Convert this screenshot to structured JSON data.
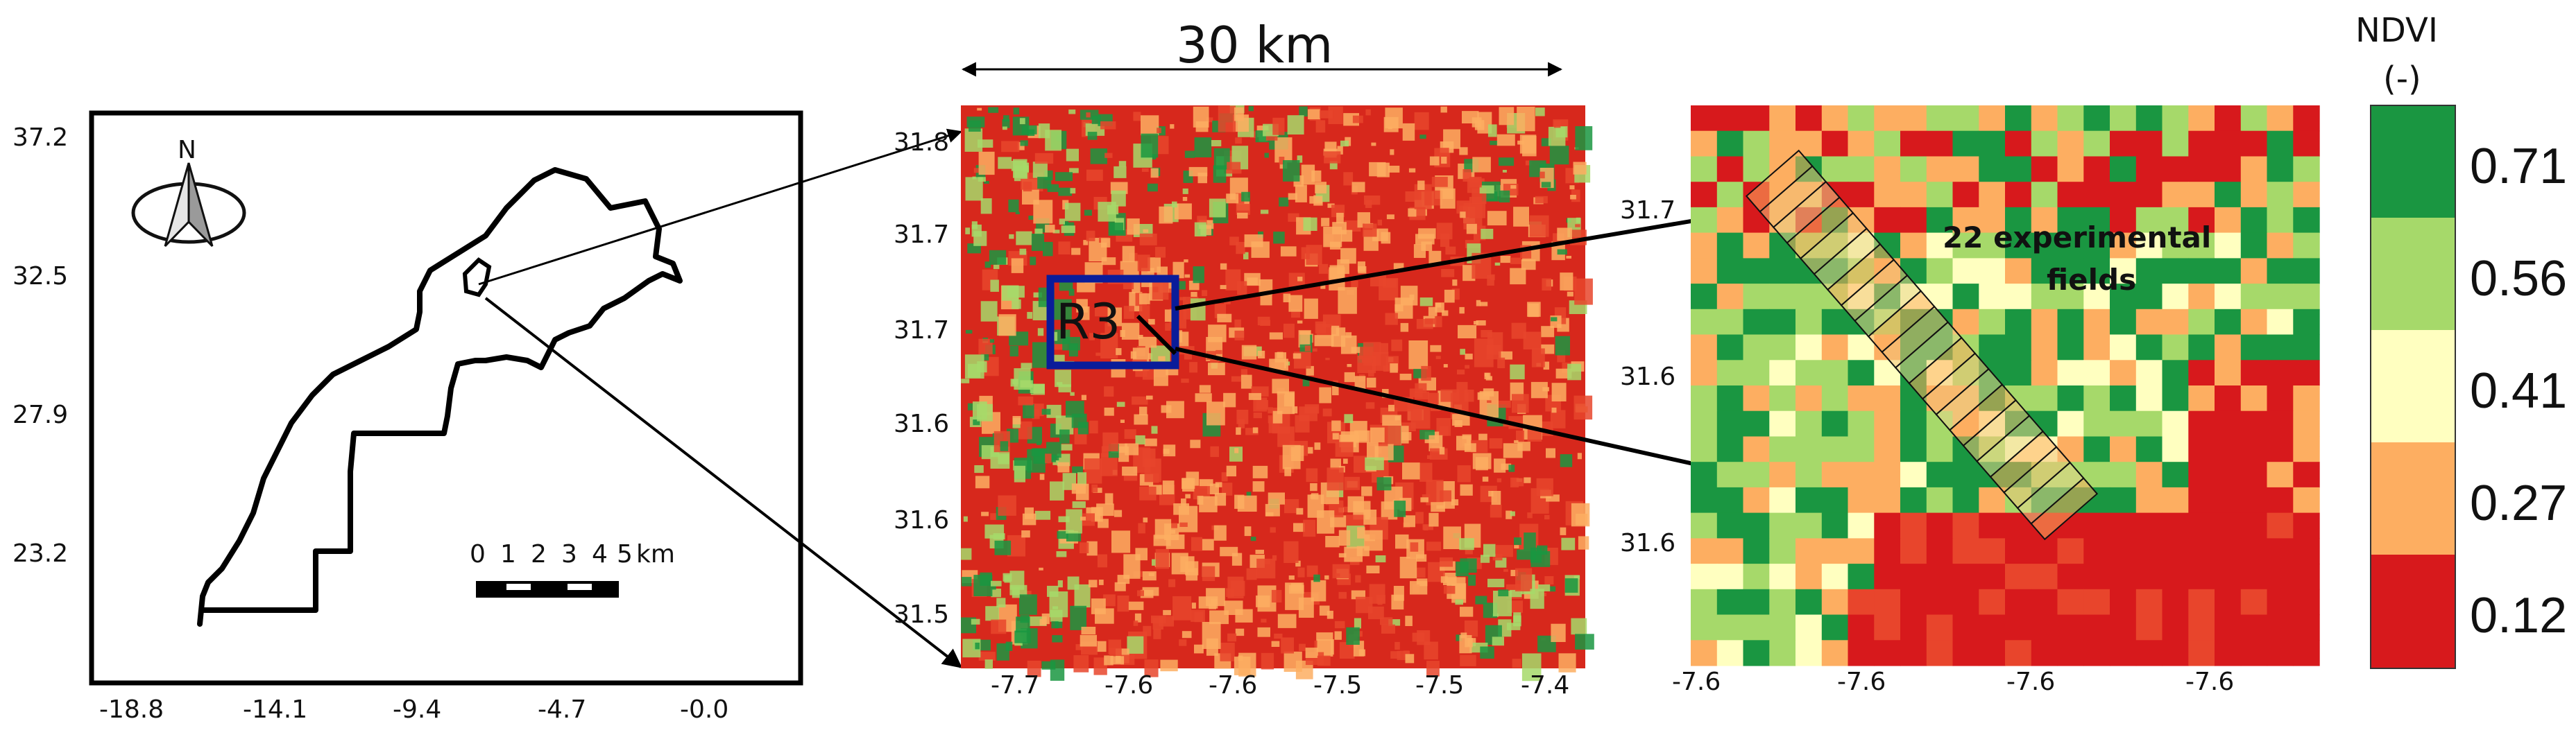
{
  "panel1": {
    "yticks": [
      "37.2",
      "32.5",
      "27.9",
      "23.2"
    ],
    "xticks": [
      "-18.8",
      "-14.1",
      "-9.4",
      "-4.7",
      "-0.0"
    ],
    "north_label": "N",
    "scalebar_labels": [
      "0",
      "1",
      "2",
      "3",
      "4",
      "5"
    ],
    "scalebar_unit": "km"
  },
  "panel2": {
    "distance_label": "30 km",
    "yticks": [
      "31.8",
      "31.7",
      "31.7",
      "31.6",
      "31.6",
      "31.5"
    ],
    "xticks": [
      "-7.7",
      "-7.6",
      "-7.6",
      "-7.5",
      "-7.5",
      "-7.4"
    ],
    "box_label": "R3"
  },
  "panel3": {
    "yticks": [
      "31.7",
      "31.6",
      "31.6"
    ],
    "xticks": [
      "-7.6",
      "-7.6",
      "-7.6",
      "-7.6"
    ],
    "annotation_line1": "22 experimental",
    "annotation_line2": "fields"
  },
  "colorbar": {
    "title_line1": "NDVI",
    "title_line2": "(-)",
    "levels": [
      "0.71",
      "0.56",
      "0.41",
      "0.27",
      "0.12"
    ],
    "colors": [
      "#1a9641",
      "#a6d96a",
      "#ffffc0",
      "#fdae61",
      "#d7191c"
    ]
  }
}
